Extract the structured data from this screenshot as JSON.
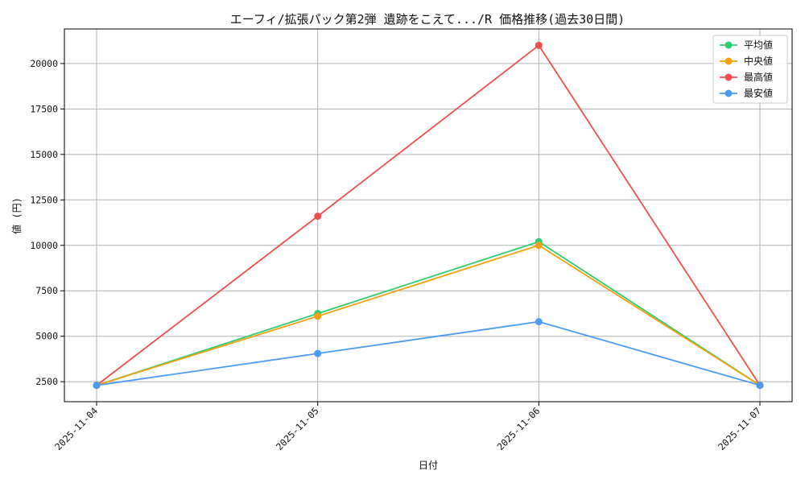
{
  "chart_data": {
    "type": "line",
    "title": "エーフィ/拡張パック第2弾 遺跡をこえて.../R 価格推移(過去30日間)",
    "xlabel": "日付",
    "ylabel": "値 (円)",
    "categories": [
      "2025-11-04",
      "2025-11-05",
      "2025-11-06",
      "2025-11-07"
    ],
    "ylim": [
      1400,
      21900
    ],
    "yticks": [
      2500,
      5000,
      7500,
      10000,
      12500,
      15000,
      17500,
      20000
    ],
    "grid": true,
    "legend_position": "top-right",
    "series": [
      {
        "name": "平均値",
        "color": "#2ecc71",
        "values": [
          2300,
          6250,
          10200,
          2300
        ]
      },
      {
        "name": "中央値",
        "color": "#f1a10f",
        "values": [
          2300,
          6100,
          10000,
          2300
        ]
      },
      {
        "name": "最高値",
        "color": "#f04e4e",
        "values": [
          2300,
          11600,
          21000,
          2300
        ]
      },
      {
        "name": "最安値",
        "color": "#4b9bf5",
        "values": [
          2300,
          4050,
          5800,
          2300
        ]
      }
    ]
  }
}
